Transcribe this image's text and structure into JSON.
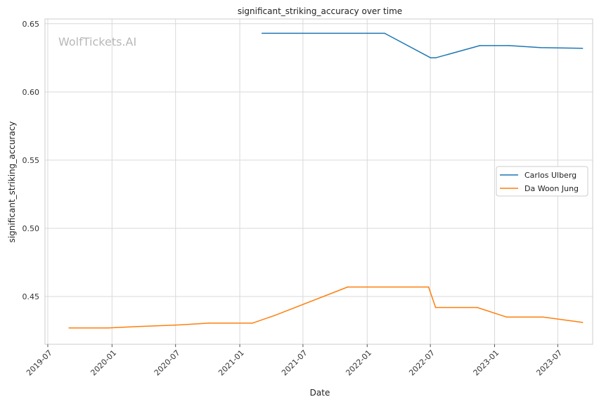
{
  "chart_data": {
    "type": "line",
    "title": "significant_striking_accuracy over time",
    "xlabel": "Date",
    "ylabel": "significant_striking_accuracy",
    "watermark": "WolfTickets.AI",
    "grid": true,
    "legend_position": "center-right",
    "xlim": [
      "2019-06-23",
      "2023-10-09"
    ],
    "ylim": [
      0.415,
      0.6535
    ],
    "x_ticks": [
      "2019-07",
      "2020-01",
      "2020-07",
      "2021-01",
      "2021-07",
      "2022-01",
      "2022-07",
      "2023-01",
      "2023-07"
    ],
    "y_ticks": [
      "0.45",
      "0.50",
      "0.55",
      "0.60",
      "0.65"
    ],
    "series": [
      {
        "name": "Carlos Ulberg",
        "color": "#1f77b4",
        "points": [
          {
            "x": "2021-03-06",
            "y": 0.643
          },
          {
            "x": "2022-02-20",
            "y": 0.643
          },
          {
            "x": "2022-07-02",
            "y": 0.625
          },
          {
            "x": "2022-07-16",
            "y": 0.625
          },
          {
            "x": "2022-11-20",
            "y": 0.634
          },
          {
            "x": "2023-02-12",
            "y": 0.634
          },
          {
            "x": "2023-05-13",
            "y": 0.6325
          },
          {
            "x": "2023-09-10",
            "y": 0.632
          }
        ]
      },
      {
        "name": "Da Woon Jung",
        "color": "#ff7f0e",
        "points": [
          {
            "x": "2019-08-31",
            "y": 0.427
          },
          {
            "x": "2019-12-21",
            "y": 0.427
          },
          {
            "x": "2020-03-15",
            "y": 0.428
          },
          {
            "x": "2020-06-28",
            "y": 0.429
          },
          {
            "x": "2020-10-04",
            "y": 0.4305
          },
          {
            "x": "2021-02-06",
            "y": 0.4305
          },
          {
            "x": "2021-04-10",
            "y": 0.436
          },
          {
            "x": "2021-11-06",
            "y": 0.457
          },
          {
            "x": "2022-06-26",
            "y": 0.457
          },
          {
            "x": "2022-07-16",
            "y": 0.442
          },
          {
            "x": "2022-11-12",
            "y": 0.442
          },
          {
            "x": "2023-02-04",
            "y": 0.435
          },
          {
            "x": "2023-05-20",
            "y": 0.435
          },
          {
            "x": "2023-09-10",
            "y": 0.431
          }
        ]
      }
    ]
  }
}
